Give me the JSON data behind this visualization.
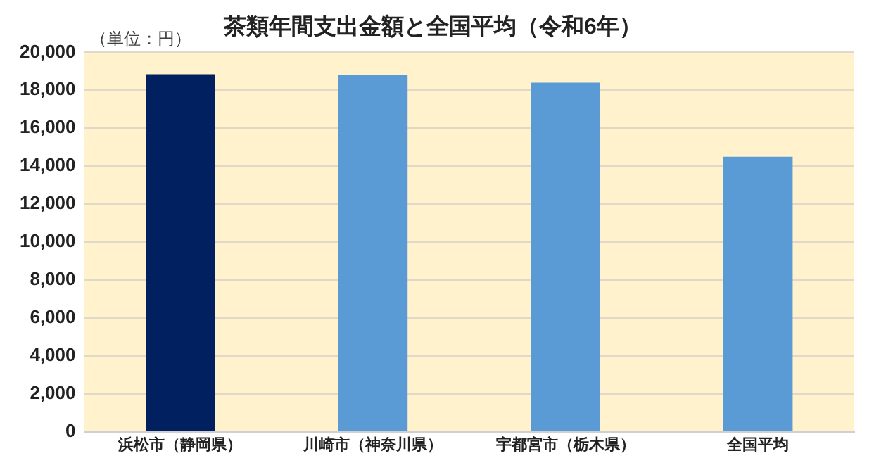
{
  "chart_data": {
    "type": "bar",
    "title": "茶類年間支出金額と全国平均（令和6年）",
    "annotations": [
      "（単位：円）"
    ],
    "categories": [
      "浜松市（静岡県）",
      "川崎市（神奈川県）",
      "宇都宮市（栃木県）",
      "全国平均"
    ],
    "values": [
      18850,
      18800,
      18400,
      14500
    ],
    "colors": [
      "#002060",
      "#5b9bd5",
      "#5b9bd5",
      "#5b9bd5"
    ],
    "ylim": [
      0,
      20000
    ],
    "yticks": [
      0,
      {
        "value": 2000,
        "label": "2,000"
      },
      {
        "value": 4000,
        "label": "4,000"
      },
      {
        "value": 6000,
        "label": "6,000"
      },
      {
        "value": 8000,
        "label": "8,000"
      },
      {
        "value": 10000,
        "label": "10,000"
      },
      {
        "value": 12000,
        "label": "12,000"
      },
      {
        "value": 14000,
        "label": "14,000"
      },
      {
        "value": 16000,
        "label": "16,000"
      },
      {
        "value": 18000,
        "label": "18,000"
      },
      {
        "value": 20000,
        "label": "20,000"
      }
    ],
    "grid": "y",
    "legend": false
  }
}
